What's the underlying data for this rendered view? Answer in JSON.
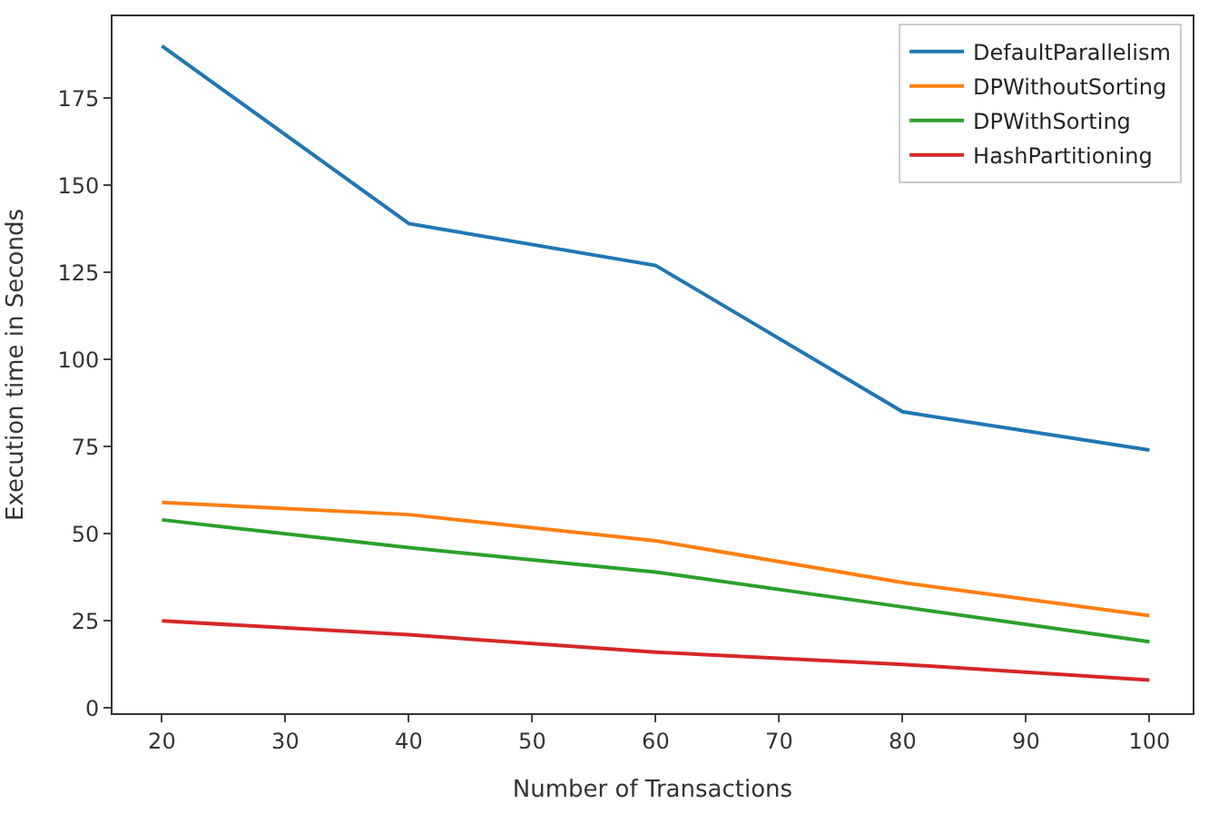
{
  "chart_data": {
    "type": "line",
    "xlabel": "Number of Transactions",
    "ylabel": "Execution time in Seconds",
    "x": [
      20,
      40,
      60,
      80,
      100
    ],
    "series": [
      {
        "name": "DefaultParallelism",
        "color": "#1f77b4",
        "values": [
          190,
          139,
          127,
          85,
          74
        ]
      },
      {
        "name": "DPWithoutSorting",
        "color": "#ff7f0e",
        "values": [
          59,
          55.5,
          48,
          36,
          26.5
        ]
      },
      {
        "name": "DPWithSorting",
        "color": "#2ca02c",
        "values": [
          54,
          46,
          39,
          29,
          19
        ]
      },
      {
        "name": "HashPartitioning",
        "color": "#d62728",
        "values": [
          25,
          21,
          16,
          12.5,
          8
        ]
      }
    ],
    "xlim": [
      16,
      103.5
    ],
    "ylim": [
      -1.5,
      198.5
    ],
    "xticks": [
      20,
      30,
      40,
      50,
      60,
      70,
      80,
      90,
      100
    ],
    "yticks": [
      0,
      25,
      50,
      75,
      100,
      125,
      150,
      175
    ],
    "legend": "top right",
    "marker": "none",
    "line_style": "solid"
  }
}
